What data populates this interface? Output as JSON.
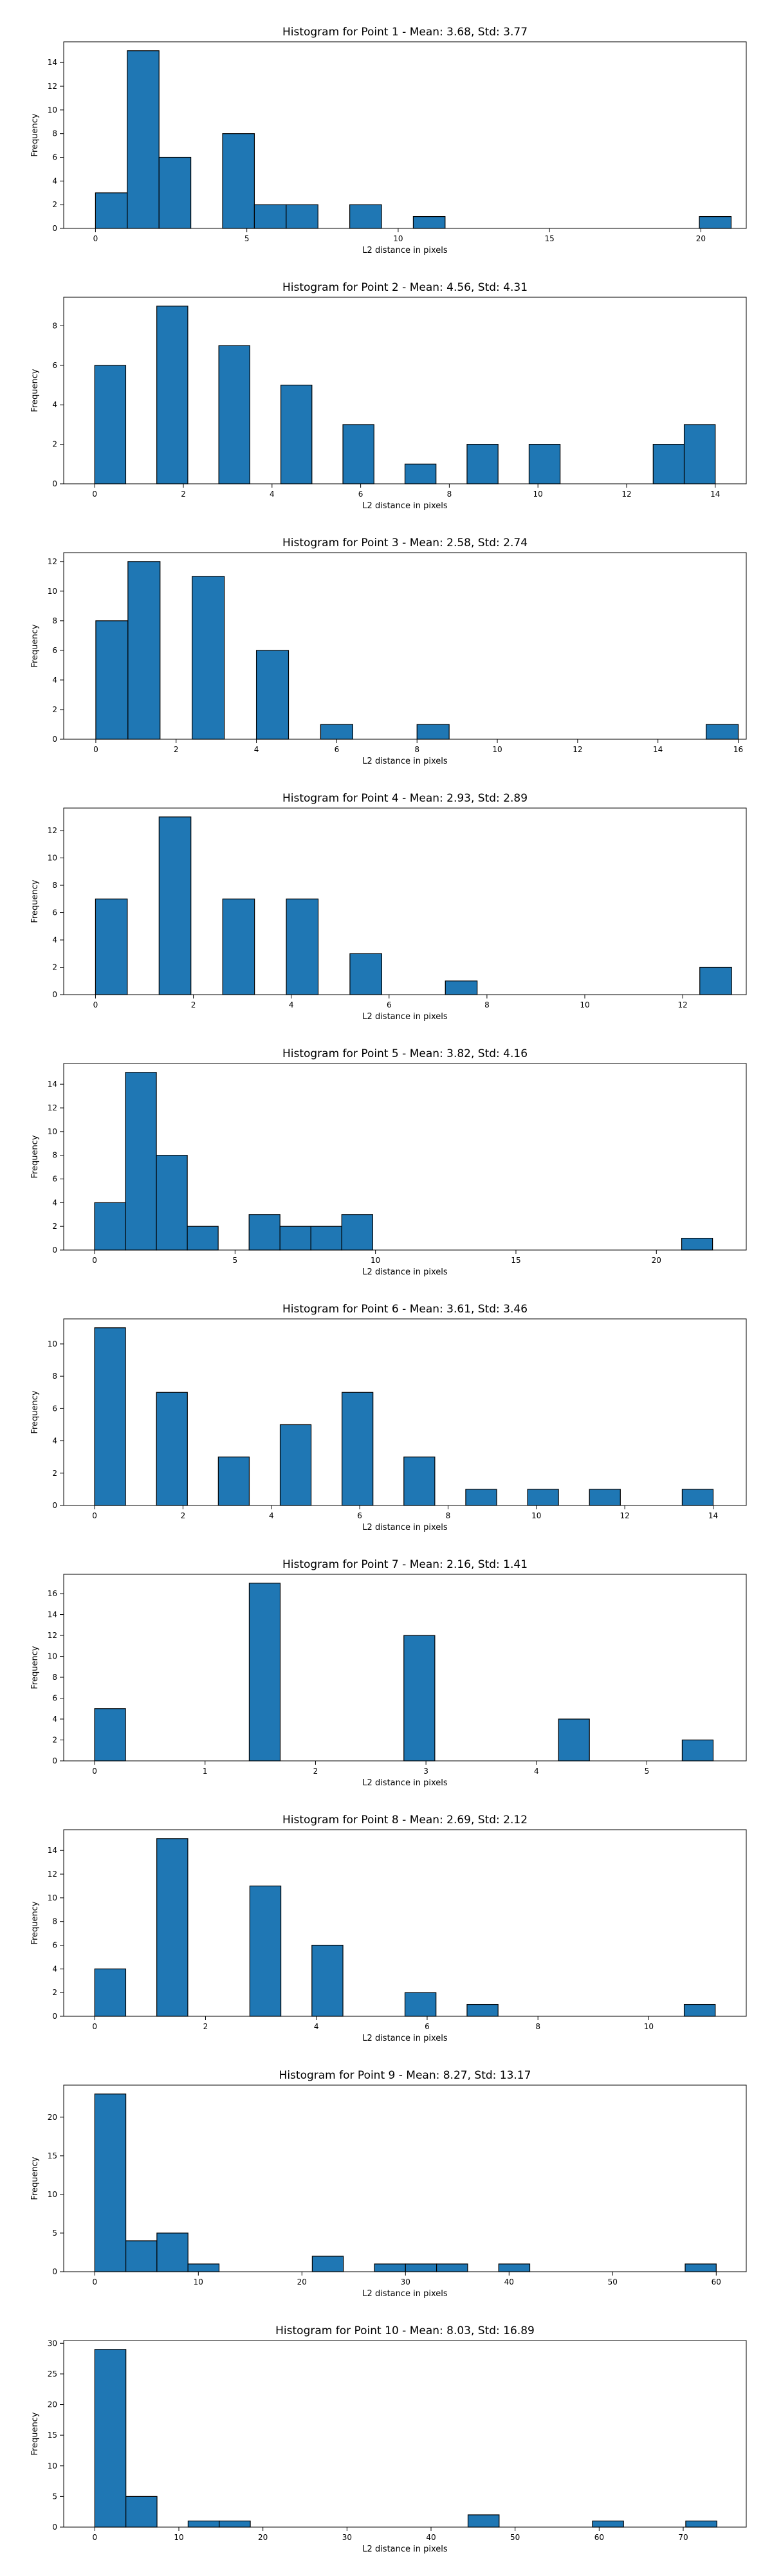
{
  "chart_data": [
    {
      "type": "bar",
      "title": "Histogram for Point 1 - Mean: 3.68, Std: 3.77",
      "xlabel": "L2 distance in pixels",
      "ylabel": "Frequency",
      "xlim": [
        -1.05,
        21.5
      ],
      "ylim": [
        0,
        15.75
      ],
      "xticks": [
        0,
        5,
        10,
        15,
        20
      ],
      "yticks": [
        0,
        2,
        4,
        6,
        8,
        10,
        12,
        14
      ],
      "bin_width": 1.05,
      "bins": [
        {
          "x0": 0.0,
          "count": 3
        },
        {
          "x0": 1.05,
          "count": 15
        },
        {
          "x0": 2.1,
          "count": 6
        },
        {
          "x0": 4.2,
          "count": 8
        },
        {
          "x0": 5.25,
          "count": 2
        },
        {
          "x0": 6.3,
          "count": 2
        },
        {
          "x0": 8.4,
          "count": 2
        },
        {
          "x0": 10.5,
          "count": 1
        },
        {
          "x0": 19.95,
          "count": 1
        }
      ]
    },
    {
      "type": "bar",
      "title": "Histogram for Point 2 - Mean: 4.56, Std: 4.31",
      "xlabel": "L2 distance in pixels",
      "ylabel": "Frequency",
      "xlim": [
        -0.7,
        14.7
      ],
      "ylim": [
        0,
        9.45
      ],
      "xticks": [
        0,
        2,
        4,
        6,
        8,
        10,
        12,
        14
      ],
      "yticks": [
        0,
        2,
        4,
        6,
        8
      ],
      "bin_width": 0.7,
      "bins": [
        {
          "x0": 0.0,
          "count": 6
        },
        {
          "x0": 1.4,
          "count": 9
        },
        {
          "x0": 2.8,
          "count": 7
        },
        {
          "x0": 4.2,
          "count": 5
        },
        {
          "x0": 5.6,
          "count": 3
        },
        {
          "x0": 7.0,
          "count": 1
        },
        {
          "x0": 8.4,
          "count": 2
        },
        {
          "x0": 9.8,
          "count": 2
        },
        {
          "x0": 12.6,
          "count": 2
        },
        {
          "x0": 13.3,
          "count": 3
        }
      ]
    },
    {
      "type": "bar",
      "title": "Histogram for Point 3 - Mean: 2.58, Std: 2.74",
      "xlabel": "L2 distance in pixels",
      "ylabel": "Frequency",
      "xlim": [
        -0.8,
        16.2
      ],
      "ylim": [
        0,
        12.6
      ],
      "xticks": [
        0,
        2,
        4,
        6,
        8,
        10,
        12,
        14,
        16
      ],
      "yticks": [
        0,
        2,
        4,
        6,
        8,
        10,
        12
      ],
      "bin_width": 0.8,
      "bins": [
        {
          "x0": 0.0,
          "count": 8
        },
        {
          "x0": 0.8,
          "count": 12
        },
        {
          "x0": 2.4,
          "count": 11
        },
        {
          "x0": 4.0,
          "count": 6
        },
        {
          "x0": 5.6,
          "count": 1
        },
        {
          "x0": 8.0,
          "count": 1
        },
        {
          "x0": 15.2,
          "count": 1
        }
      ]
    },
    {
      "type": "bar",
      "title": "Histogram for Point 4 - Mean: 2.93, Std: 2.89",
      "xlabel": "L2 distance in pixels",
      "ylabel": "Frequency",
      "xlim": [
        -0.65,
        13.3
      ],
      "ylim": [
        0,
        13.65
      ],
      "xticks": [
        0,
        2,
        4,
        6,
        8,
        10,
        12
      ],
      "yticks": [
        0,
        2,
        4,
        6,
        8,
        10,
        12
      ],
      "bin_width": 0.65,
      "bins": [
        {
          "x0": 0.0,
          "count": 7
        },
        {
          "x0": 1.3,
          "count": 13
        },
        {
          "x0": 2.6,
          "count": 7
        },
        {
          "x0": 3.9,
          "count": 7
        },
        {
          "x0": 5.2,
          "count": 3
        },
        {
          "x0": 7.15,
          "count": 1
        },
        {
          "x0": 12.35,
          "count": 2
        }
      ]
    },
    {
      "type": "bar",
      "title": "Histogram for Point 5 - Mean: 3.82, Std: 4.16",
      "xlabel": "L2 distance in pixels",
      "ylabel": "Frequency",
      "xlim": [
        -1.1,
        23.2
      ],
      "ylim": [
        0,
        15.75
      ],
      "xticks": [
        0,
        5,
        10,
        15,
        20
      ],
      "yticks": [
        0,
        2,
        4,
        6,
        8,
        10,
        12,
        14
      ],
      "bin_width": 1.1,
      "bins": [
        {
          "x0": 0.0,
          "count": 4
        },
        {
          "x0": 1.1,
          "count": 15
        },
        {
          "x0": 2.2,
          "count": 8
        },
        {
          "x0": 3.3,
          "count": 2
        },
        {
          "x0": 5.5,
          "count": 3
        },
        {
          "x0": 6.6,
          "count": 2
        },
        {
          "x0": 7.7,
          "count": 2
        },
        {
          "x0": 8.8,
          "count": 3
        },
        {
          "x0": 20.9,
          "count": 1
        }
      ]
    },
    {
      "type": "bar",
      "title": "Histogram for Point 6 - Mean: 3.61, Std: 3.46",
      "xlabel": "L2 distance in pixels",
      "ylabel": "Frequency",
      "xlim": [
        -0.7,
        14.75
      ],
      "ylim": [
        0,
        11.55
      ],
      "xticks": [
        0,
        2,
        4,
        6,
        8,
        10,
        12,
        14
      ],
      "yticks": [
        0,
        2,
        4,
        6,
        8,
        10
      ],
      "bin_width": 0.7,
      "bins": [
        {
          "x0": 0.0,
          "count": 11
        },
        {
          "x0": 1.4,
          "count": 7
        },
        {
          "x0": 2.8,
          "count": 3
        },
        {
          "x0": 4.2,
          "count": 5
        },
        {
          "x0": 5.6,
          "count": 7
        },
        {
          "x0": 7.0,
          "count": 3
        },
        {
          "x0": 8.4,
          "count": 1
        },
        {
          "x0": 9.8,
          "count": 1
        },
        {
          "x0": 11.2,
          "count": 1
        },
        {
          "x0": 13.3,
          "count": 1
        }
      ]
    },
    {
      "type": "bar",
      "title": "Histogram for Point 7 - Mean: 2.16, Std: 1.41",
      "xlabel": "L2 distance in pixels",
      "ylabel": "Frequency",
      "xlim": [
        -0.28,
        5.9
      ],
      "ylim": [
        0,
        17.85
      ],
      "xticks": [
        0,
        1,
        2,
        3,
        4,
        5
      ],
      "yticks": [
        0,
        2,
        4,
        6,
        8,
        10,
        12,
        14,
        16
      ],
      "bin_width": 0.28,
      "bins": [
        {
          "x0": 0.0,
          "count": 5
        },
        {
          "x0": 1.4,
          "count": 17
        },
        {
          "x0": 2.8,
          "count": 12
        },
        {
          "x0": 4.2,
          "count": 4
        },
        {
          "x0": 5.32,
          "count": 2
        }
      ]
    },
    {
      "type": "bar",
      "title": "Histogram for Point 8 - Mean: 2.69, Std: 2.12",
      "xlabel": "L2 distance in pixels",
      "ylabel": "Frequency",
      "xlim": [
        -0.56,
        11.76
      ],
      "ylim": [
        0,
        15.75
      ],
      "xticks": [
        0,
        2,
        4,
        6,
        8,
        10
      ],
      "yticks": [
        0,
        2,
        4,
        6,
        8,
        10,
        12,
        14
      ],
      "bin_width": 0.56,
      "bins": [
        {
          "x0": 0.0,
          "count": 4
        },
        {
          "x0": 1.12,
          "count": 15
        },
        {
          "x0": 2.8,
          "count": 11
        },
        {
          "x0": 3.92,
          "count": 6
        },
        {
          "x0": 5.6,
          "count": 2
        },
        {
          "x0": 6.72,
          "count": 1
        },
        {
          "x0": 10.64,
          "count": 1
        }
      ]
    },
    {
      "type": "bar",
      "title": "Histogram for Point 9 - Mean: 8.27, Std: 13.17",
      "xlabel": "L2 distance in pixels",
      "ylabel": "Frequency",
      "xlim": [
        -3.0,
        62.9
      ],
      "ylim": [
        0,
        24.15
      ],
      "xticks": [
        0,
        10,
        20,
        30,
        40,
        50,
        60
      ],
      "yticks": [
        0,
        5,
        10,
        15,
        20
      ],
      "bin_width": 3.0,
      "bins": [
        {
          "x0": 0.0,
          "count": 23
        },
        {
          "x0": 3.0,
          "count": 4
        },
        {
          "x0": 6.0,
          "count": 5
        },
        {
          "x0": 9.0,
          "count": 1
        },
        {
          "x0": 21.0,
          "count": 2
        },
        {
          "x0": 27.0,
          "count": 1
        },
        {
          "x0": 30.0,
          "count": 1
        },
        {
          "x0": 33.0,
          "count": 1
        },
        {
          "x0": 39.0,
          "count": 1
        },
        {
          "x0": 57.0,
          "count": 1
        }
      ]
    },
    {
      "type": "bar",
      "title": "Histogram for Point 10 - Mean: 8.03, Std: 16.89",
      "xlabel": "L2 distance in pixels",
      "ylabel": "Frequency",
      "xlim": [
        -3.7,
        77.5
      ],
      "ylim": [
        0,
        30.45
      ],
      "xticks": [
        0,
        10,
        20,
        30,
        40,
        50,
        60,
        70
      ],
      "yticks": [
        0,
        5,
        10,
        15,
        20,
        25,
        30
      ],
      "bin_width": 3.7,
      "bins": [
        {
          "x0": 0.0,
          "count": 29
        },
        {
          "x0": 3.7,
          "count": 5
        },
        {
          "x0": 11.1,
          "count": 1
        },
        {
          "x0": 14.8,
          "count": 1
        },
        {
          "x0": 44.4,
          "count": 2
        },
        {
          "x0": 59.2,
          "count": 1
        },
        {
          "x0": 70.3,
          "count": 1
        }
      ]
    }
  ],
  "colors": {
    "bar_fill": "#1f77b4",
    "bar_edge": "#000000",
    "axes": "#000000",
    "background": "#ffffff"
  }
}
